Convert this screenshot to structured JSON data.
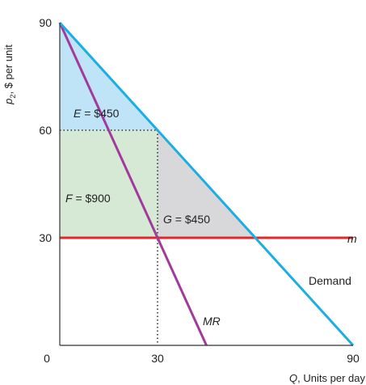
{
  "chart_data": {
    "type": "line",
    "ylabel": "p₂, $ per unit",
    "ylabel_main": "p",
    "ylabel_sub": "2",
    "ylabel_rest": ", $ per unit",
    "xlabel": "Q, Units per day",
    "xlabel_var": "Q",
    "xlabel_rest": ", Units per day",
    "xlim": [
      0,
      90
    ],
    "ylim": [
      0,
      90
    ],
    "x_ticks": [
      {
        "value": 0,
        "label": "0"
      },
      {
        "value": 30,
        "label": "30"
      },
      {
        "value": 90,
        "label": "90"
      }
    ],
    "y_ticks": [
      {
        "value": 30,
        "label": "30"
      },
      {
        "value": 60,
        "label": "60"
      },
      {
        "value": 90,
        "label": "90"
      }
    ],
    "series": [
      {
        "name": "Demand",
        "label": "Demand",
        "color": "#1aaee5",
        "points": [
          [
            0,
            90
          ],
          [
            90,
            0
          ]
        ]
      },
      {
        "name": "MR",
        "label": "MR",
        "color": "#a23a9c",
        "points": [
          [
            0,
            90
          ],
          [
            45,
            0
          ]
        ]
      },
      {
        "name": "m",
        "label": "m",
        "color": "#e3262a",
        "points": [
          [
            0,
            30
          ],
          [
            90,
            30
          ]
        ]
      }
    ],
    "regions": [
      {
        "id": "E",
        "var": "E",
        "text": " = $450",
        "color": "#bfe3f7",
        "polygon": [
          [
            0,
            90
          ],
          [
            30,
            60
          ],
          [
            0,
            60
          ]
        ]
      },
      {
        "id": "F",
        "var": "F",
        "text": " = $900",
        "color": "#d5e9d5",
        "polygon": [
          [
            0,
            60
          ],
          [
            30,
            60
          ],
          [
            30,
            30
          ],
          [
            0,
            30
          ]
        ]
      },
      {
        "id": "G",
        "var": "G",
        "text": " = $450",
        "color": "#d8d8da",
        "polygon": [
          [
            30,
            60
          ],
          [
            30,
            30
          ],
          [
            60,
            30
          ]
        ]
      }
    ],
    "guides": [
      {
        "from": [
          0,
          60
        ],
        "to": [
          30,
          60
        ]
      },
      {
        "from": [
          30,
          60
        ],
        "to": [
          30,
          0
        ]
      }
    ]
  }
}
